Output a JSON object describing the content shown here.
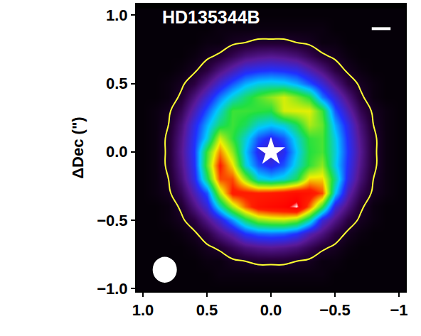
{
  "chart_data": {
    "type": "heatmap",
    "title": "HD135344B",
    "ylabel": "ΔDec (\")",
    "grid": false,
    "xlim": [
      1.05,
      -1.05
    ],
    "ylim": [
      -1.02,
      1.08
    ],
    "xticks": [
      {
        "value": 1,
        "label": "1.0"
      },
      {
        "value": 0.5,
        "label": "0.5"
      },
      {
        "value": 0,
        "label": "0.0"
      },
      {
        "value": -0.5,
        "label": "−0.5"
      },
      {
        "value": -1,
        "label": "−1"
      }
    ],
    "yticks": [
      {
        "value": 1,
        "label": "1.0"
      },
      {
        "value": 0.5,
        "label": "0.5"
      },
      {
        "value": 0,
        "label": "0.0"
      },
      {
        "value": -0.5,
        "label": "−0.5"
      },
      {
        "value": -1,
        "label": "−1.0"
      }
    ],
    "zlim": [
      0,
      1
    ],
    "contour_level": 0.05,
    "star": {
      "x": 0,
      "y": 0
    },
    "x": [
      1.0,
      0.9,
      0.8,
      0.7,
      0.6,
      0.5,
      0.4,
      0.3,
      0.2,
      0.1,
      0.0,
      -0.1,
      -0.2,
      -0.3,
      -0.4,
      -0.5,
      -0.6,
      -0.7,
      -0.8,
      -0.9,
      -1.0
    ],
    "y": [
      1.0,
      0.9,
      0.8,
      0.7,
      0.6,
      0.5,
      0.4,
      0.3,
      0.2,
      0.1,
      0.0,
      -0.1,
      -0.2,
      -0.3,
      -0.4,
      -0.5,
      -0.6,
      -0.7,
      -0.8,
      -0.9,
      -1.0
    ],
    "z": [
      [
        0.01,
        0.01,
        0.01,
        0.01,
        0.01,
        0.01,
        0.01,
        0.01,
        0.01,
        0.01,
        0.01,
        0.01,
        0.01,
        0.01,
        0.01,
        0.01,
        0.01,
        0.01,
        0.01,
        0.01,
        0.01
      ],
      [
        0.01,
        0.01,
        0.01,
        0.01,
        0.01,
        0.01,
        0.02,
        0.02,
        0.02,
        0.02,
        0.02,
        0.02,
        0.02,
        0.02,
        0.02,
        0.01,
        0.01,
        0.01,
        0.01,
        0.01,
        0.01
      ],
      [
        0.01,
        0.01,
        0.01,
        0.01,
        0.01,
        0.02,
        0.02,
        0.04,
        0.05,
        0.06,
        0.06,
        0.06,
        0.05,
        0.04,
        0.02,
        0.02,
        0.01,
        0.01,
        0.01,
        0.01,
        0.01
      ],
      [
        0.01,
        0.01,
        0.01,
        0.01,
        0.02,
        0.04,
        0.06,
        0.1,
        0.14,
        0.16,
        0.17,
        0.16,
        0.14,
        0.1,
        0.06,
        0.04,
        0.02,
        0.01,
        0.01,
        0.01,
        0.01
      ],
      [
        0.01,
        0.01,
        0.01,
        0.02,
        0.04,
        0.08,
        0.15,
        0.21,
        0.27,
        0.29,
        0.3,
        0.29,
        0.27,
        0.21,
        0.15,
        0.08,
        0.04,
        0.02,
        0.01,
        0.01,
        0.01
      ],
      [
        0.01,
        0.01,
        0.02,
        0.04,
        0.08,
        0.16,
        0.25,
        0.33,
        0.4,
        0.44,
        0.45,
        0.44,
        0.4,
        0.33,
        0.25,
        0.16,
        0.08,
        0.04,
        0.02,
        0.01,
        0.01
      ],
      [
        0.01,
        0.01,
        0.02,
        0.06,
        0.15,
        0.25,
        0.36,
        0.45,
        0.52,
        0.58,
        0.63,
        0.68,
        0.62,
        0.55,
        0.36,
        0.25,
        0.15,
        0.06,
        0.02,
        0.01,
        0.01
      ],
      [
        0.01,
        0.02,
        0.04,
        0.1,
        0.21,
        0.33,
        0.45,
        0.57,
        0.57,
        0.56,
        0.55,
        0.68,
        0.69,
        0.69,
        0.57,
        0.33,
        0.21,
        0.1,
        0.04,
        0.02,
        0.01
      ],
      [
        0.01,
        0.02,
        0.05,
        0.14,
        0.27,
        0.4,
        0.52,
        0.57,
        0.53,
        0.45,
        0.42,
        0.45,
        0.53,
        0.65,
        0.6,
        0.4,
        0.27,
        0.14,
        0.05,
        0.02,
        0.01
      ],
      [
        0.01,
        0.02,
        0.06,
        0.16,
        0.29,
        0.44,
        0.68,
        0.56,
        0.45,
        0.33,
        0.28,
        0.33,
        0.45,
        0.56,
        0.58,
        0.44,
        0.29,
        0.16,
        0.06,
        0.02,
        0.01
      ],
      [
        0.01,
        0.02,
        0.06,
        0.17,
        0.3,
        0.57,
        0.78,
        0.63,
        0.42,
        0.28,
        0.22,
        0.28,
        0.42,
        0.55,
        0.58,
        0.45,
        0.3,
        0.17,
        0.06,
        0.02,
        0.01
      ],
      [
        0.01,
        0.02,
        0.06,
        0.16,
        0.29,
        0.59,
        0.86,
        0.71,
        0.45,
        0.33,
        0.28,
        0.33,
        0.45,
        0.56,
        0.63,
        0.44,
        0.29,
        0.16,
        0.06,
        0.02,
        0.01
      ],
      [
        0.01,
        0.02,
        0.05,
        0.14,
        0.27,
        0.52,
        0.82,
        0.82,
        0.63,
        0.45,
        0.42,
        0.45,
        0.53,
        0.72,
        0.72,
        0.5,
        0.27,
        0.14,
        0.05,
        0.02,
        0.01
      ],
      [
        0.01,
        0.02,
        0.04,
        0.1,
        0.21,
        0.33,
        0.65,
        0.87,
        0.87,
        0.86,
        0.87,
        0.89,
        0.92,
        0.9,
        0.82,
        0.43,
        0.21,
        0.1,
        0.04,
        0.02,
        0.01
      ],
      [
        0.01,
        0.01,
        0.02,
        0.06,
        0.15,
        0.25,
        0.46,
        0.65,
        0.8,
        0.9,
        0.93,
        0.95,
        1.0,
        0.8,
        0.56,
        0.25,
        0.15,
        0.06,
        0.02,
        0.01,
        0.01
      ],
      [
        0.01,
        0.01,
        0.02,
        0.04,
        0.08,
        0.16,
        0.25,
        0.38,
        0.52,
        0.62,
        0.65,
        0.66,
        0.62,
        0.48,
        0.25,
        0.16,
        0.08,
        0.04,
        0.02,
        0.01,
        0.01
      ],
      [
        0.01,
        0.01,
        0.01,
        0.02,
        0.04,
        0.08,
        0.15,
        0.21,
        0.3,
        0.34,
        0.35,
        0.34,
        0.3,
        0.21,
        0.15,
        0.08,
        0.04,
        0.02,
        0.01,
        0.01,
        0.01
      ],
      [
        0.01,
        0.01,
        0.01,
        0.01,
        0.02,
        0.04,
        0.06,
        0.1,
        0.14,
        0.16,
        0.17,
        0.16,
        0.14,
        0.1,
        0.06,
        0.04,
        0.02,
        0.01,
        0.01,
        0.01,
        0.01
      ],
      [
        0.01,
        0.01,
        0.01,
        0.01,
        0.01,
        0.02,
        0.02,
        0.04,
        0.05,
        0.06,
        0.06,
        0.06,
        0.05,
        0.04,
        0.02,
        0.02,
        0.01,
        0.01,
        0.01,
        0.01,
        0.01
      ],
      [
        0.01,
        0.01,
        0.01,
        0.01,
        0.01,
        0.01,
        0.02,
        0.02,
        0.02,
        0.02,
        0.02,
        0.02,
        0.02,
        0.02,
        0.02,
        0.01,
        0.01,
        0.01,
        0.01,
        0.01,
        0.01
      ],
      [
        0.01,
        0.01,
        0.01,
        0.01,
        0.01,
        0.01,
        0.01,
        0.01,
        0.01,
        0.01,
        0.01,
        0.01,
        0.01,
        0.01,
        0.01,
        0.01,
        0.01,
        0.01,
        0.01,
        0.01,
        0.01
      ]
    ]
  }
}
